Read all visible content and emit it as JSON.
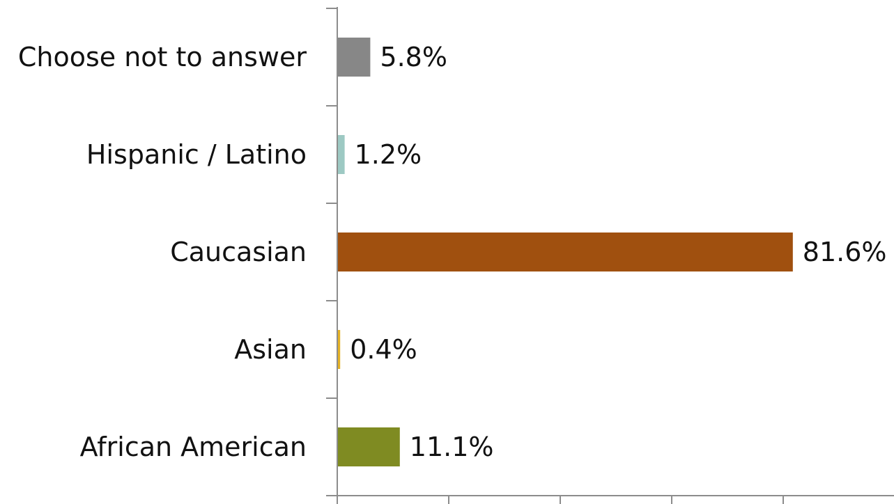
{
  "chart_data": {
    "type": "bar",
    "orientation": "horizontal",
    "categories": [
      "Choose not to answer",
      "Hispanic / Latino",
      "Caucasian",
      "Asian",
      "African American"
    ],
    "values": [
      5.8,
      1.2,
      81.6,
      0.4,
      11.1
    ],
    "value_labels": [
      "5.8%",
      "1.2%",
      "81.6%",
      "0.4%",
      "11.1%"
    ],
    "colors": [
      "#878787",
      "#9dc9c3",
      "#a0500f",
      "#e3b125",
      "#7f8b22"
    ],
    "xlim": [
      0,
      100
    ],
    "x_major_step": 20,
    "title": "",
    "xlabel": "",
    "ylabel": "",
    "grid": false,
    "legend": "none"
  }
}
